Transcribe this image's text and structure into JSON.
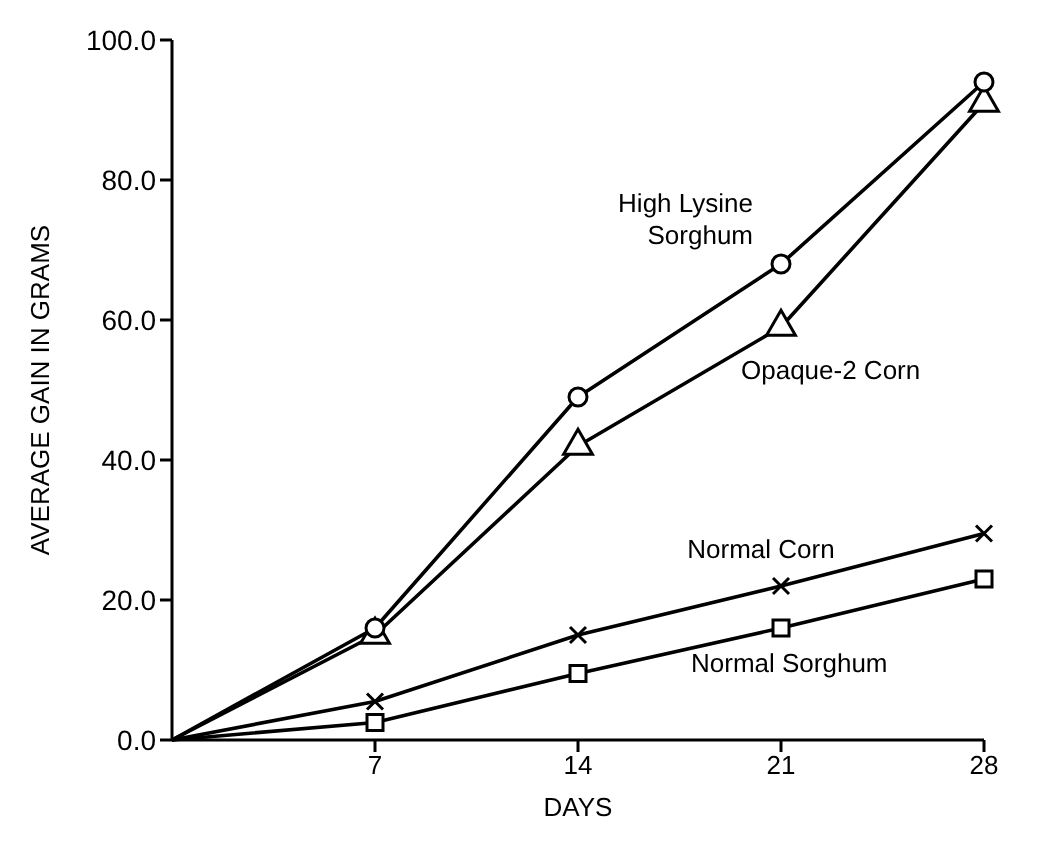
{
  "chart_data": {
    "type": "line",
    "xlabel": "DAYS",
    "ylabel": "AVERAGE GAIN IN GRAMS",
    "x": [
      0,
      7,
      14,
      21,
      28
    ],
    "series": [
      {
        "name": "High Lysine Sorghum",
        "color": "#000000",
        "marker": "circle",
        "values": [
          0,
          16,
          49,
          68,
          94
        ]
      },
      {
        "name": "Opaque-2 Corn",
        "color": "#000000",
        "marker": "triangle",
        "values": [
          0,
          15,
          42,
          59,
          91
        ]
      },
      {
        "name": "Normal Corn",
        "color": "#000000",
        "marker": "cross",
        "values": [
          0,
          5.5,
          15,
          22,
          29.5
        ]
      },
      {
        "name": "Normal Sorghum",
        "color": "#000000",
        "marker": "square",
        "values": [
          0,
          2.5,
          9.5,
          16,
          23
        ]
      }
    ],
    "xlim": [
      0,
      28
    ],
    "xticks": [
      7,
      14,
      21,
      28
    ],
    "ylim": [
      0,
      100
    ],
    "yticks": [
      {
        "value": 0,
        "label": "0.0"
      },
      {
        "value": 20,
        "label": "20.0"
      },
      {
        "value": 40,
        "label": "40.0"
      },
      {
        "value": 60,
        "label": "60.0"
      },
      {
        "value": 80,
        "label": "80.0"
      },
      {
        "value": 100,
        "label": "100.0"
      }
    ],
    "grid": false,
    "legend": false
  }
}
